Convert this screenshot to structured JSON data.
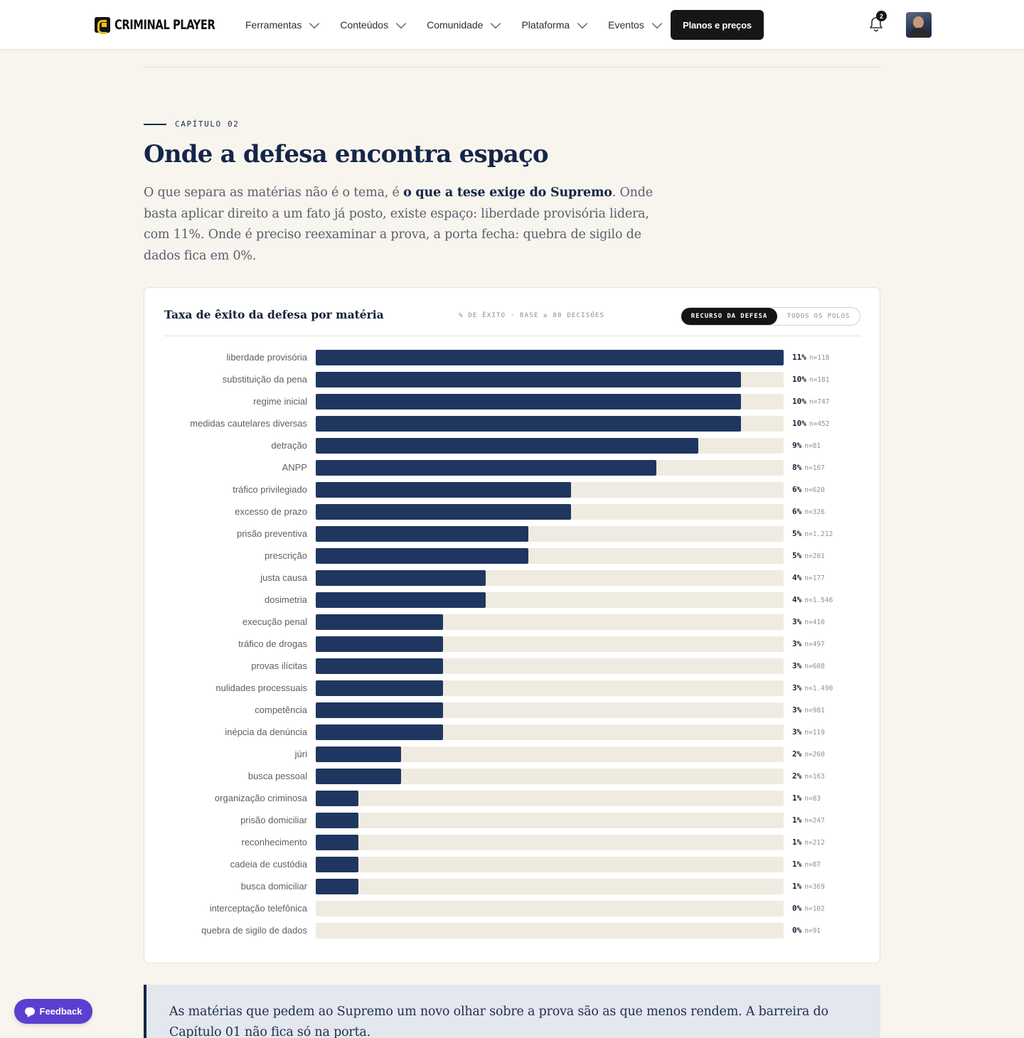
{
  "header": {
    "logo_text": "CRIMINAL PLAYER",
    "nav": [
      {
        "label": "Ferramentas"
      },
      {
        "label": "Conteúdos"
      },
      {
        "label": "Comunidade"
      },
      {
        "label": "Plataforma"
      },
      {
        "label": "Eventos"
      }
    ],
    "cta_label": "Planos e preços",
    "notification_count": "2",
    "icons": {
      "bell": "bell-icon",
      "chevron": "chevron-down-icon",
      "avatar": "user-avatar"
    }
  },
  "chapter": {
    "label": "CAPÍTULO 02",
    "title": "Onde a defesa encontra espaço",
    "intro_before": "O que separa as matérias não é o tema, é ",
    "intro_bold": "o que a tese exige do Supremo",
    "intro_after": ". Onde basta aplicar direito a um fato já posto, existe espaço: liberdade provisória lidera, com 11%. Onde é preciso reexaminar a prova, a porta fecha: quebra de sigilo de dados fica em 0%."
  },
  "card": {
    "title": "Taxa de êxito da defesa por matéria",
    "subtitle": "% DE ÊXITO · BASE ≥ 80 DECISÕES",
    "toggle": {
      "active": "RECURSO DA DEFESA",
      "inactive": "TODOS OS POLOS"
    }
  },
  "chart_data": {
    "type": "bar",
    "orientation": "horizontal",
    "title": "Taxa de êxito da defesa por matéria",
    "subtitle": "% DE ÊXITO · BASE ≥ 80 DECISÕES",
    "xlim": [
      0,
      11
    ],
    "colors": {
      "fill": "#1f3760",
      "track": "#f0ebe1"
    },
    "categories": [
      "liberdade provisória",
      "substituição da pena",
      "regime inicial",
      "medidas cautelares diversas",
      "detração",
      "ANPP",
      "tráfico privilegiado",
      "excesso de prazo",
      "prisão preventiva",
      "prescrição",
      "justa causa",
      "dosimetria",
      "execução penal",
      "tráfico de drogas",
      "provas ilícitas",
      "nulidades processuais",
      "competência",
      "inépcia da denúncia",
      "júri",
      "busca pessoal",
      "organização criminosa",
      "prisão domiciliar",
      "reconhecimento",
      "cadeia de custódia",
      "busca domiciliar",
      "interceptação telefônica",
      "quebra de sigilo de dados"
    ],
    "values": [
      11,
      10,
      10,
      10,
      9,
      8,
      6,
      6,
      5,
      5,
      4,
      4,
      3,
      3,
      3,
      3,
      3,
      3,
      2,
      2,
      1,
      1,
      1,
      1,
      1,
      0,
      0
    ],
    "value_labels": [
      "11%",
      "10%",
      "10%",
      "10%",
      "9%",
      "8%",
      "6%",
      "6%",
      "5%",
      "5%",
      "4%",
      "4%",
      "3%",
      "3%",
      "3%",
      "3%",
      "3%",
      "3%",
      "2%",
      "2%",
      "1%",
      "1%",
      "1%",
      "1%",
      "1%",
      "0%",
      "0%"
    ],
    "n_labels": [
      "n=118",
      "n=181",
      "n=747",
      "n=452",
      "n=81",
      "n=167",
      "n=620",
      "n=326",
      "n=1.212",
      "n=201",
      "n=177",
      "n=1.546",
      "n=410",
      "n=497",
      "n=608",
      "n=1.490",
      "n=981",
      "n=119",
      "n=260",
      "n=163",
      "n=83",
      "n=247",
      "n=212",
      "n=87",
      "n=369",
      "n=102",
      "n=91"
    ]
  },
  "callout": {
    "text": "As matérias que pedem ao Supremo um novo olhar sobre a prova são as que menos rendem. A barreira do Capítulo 01 não fica só na porta."
  },
  "feedback": {
    "label": "Feedback",
    "icon": "chat-bubble-icon"
  }
}
